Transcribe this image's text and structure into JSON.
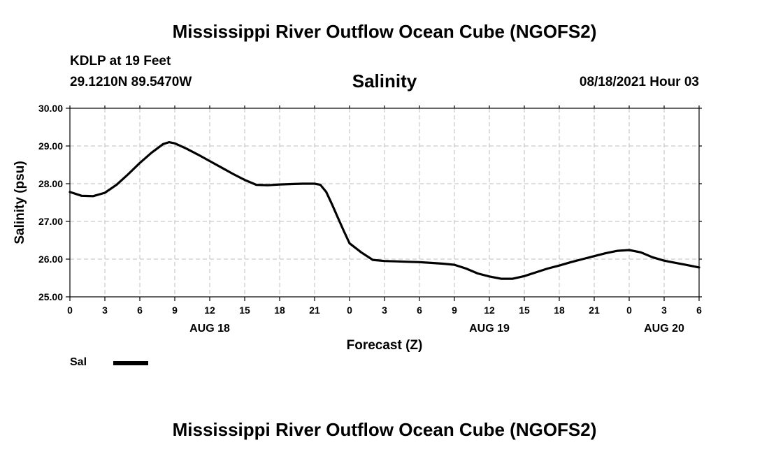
{
  "header": {
    "title": "Mississippi River Outflow Ocean Cube (NGOFS2)",
    "station": "KDLP at 19 Feet",
    "coordinates": "29.1210N  89.5470W",
    "variable": "Salinity",
    "datetime": "08/18/2021 Hour 03"
  },
  "footer": {
    "title": "Mississippi River Outflow Ocean Cube (NGOFS2)"
  },
  "legend": {
    "label": "Sal",
    "color": "#000000"
  },
  "chart_data": {
    "type": "line",
    "title": "Salinity",
    "xlabel": "Forecast (Z)",
    "ylabel": "Salinity (psu)",
    "xlim": [
      0,
      54
    ],
    "ylim": [
      25.0,
      30.0
    ],
    "grid": true,
    "y_ticks": [
      "25.00",
      "26.00",
      "27.00",
      "28.00",
      "29.00",
      "30.00"
    ],
    "x_ticks": [
      "0",
      "3",
      "6",
      "9",
      "12",
      "15",
      "18",
      "21",
      "0",
      "3",
      "6",
      "9",
      "12",
      "15",
      "18",
      "21",
      "0",
      "3",
      "6"
    ],
    "day_labels": [
      {
        "label": "AUG 18",
        "hour": 12
      },
      {
        "label": "AUG 19",
        "hour": 36
      },
      {
        "label": "AUG 20",
        "hour": 51
      }
    ],
    "series": [
      {
        "name": "Sal",
        "x": [
          0,
          1,
          2,
          3,
          4,
          5,
          6,
          7,
          8,
          8.5,
          9,
          10,
          11,
          12,
          13,
          14,
          15,
          16,
          17,
          18,
          19,
          20,
          21,
          21.5,
          22,
          22.5,
          23,
          23.5,
          24,
          25,
          26,
          27,
          28,
          29,
          30,
          31,
          32,
          33,
          34,
          35,
          36,
          37,
          38,
          39,
          40,
          41,
          42,
          43,
          44,
          45,
          46,
          47,
          48,
          49,
          50,
          51,
          52,
          53,
          54
        ],
        "values": [
          27.78,
          27.68,
          27.67,
          27.76,
          27.97,
          28.25,
          28.55,
          28.82,
          29.05,
          29.1,
          29.07,
          28.93,
          28.77,
          28.6,
          28.43,
          28.26,
          28.1,
          27.97,
          27.96,
          27.98,
          27.99,
          28.0,
          28.0,
          27.97,
          27.78,
          27.45,
          27.1,
          26.75,
          26.42,
          26.18,
          25.98,
          25.95,
          25.94,
          25.93,
          25.92,
          25.9,
          25.88,
          25.85,
          25.75,
          25.62,
          25.54,
          25.48,
          25.48,
          25.55,
          25.65,
          25.75,
          25.83,
          25.92,
          26.0,
          26.08,
          26.16,
          26.22,
          26.24,
          26.18,
          26.05,
          25.96,
          25.9,
          25.84,
          25.78
        ]
      }
    ]
  }
}
